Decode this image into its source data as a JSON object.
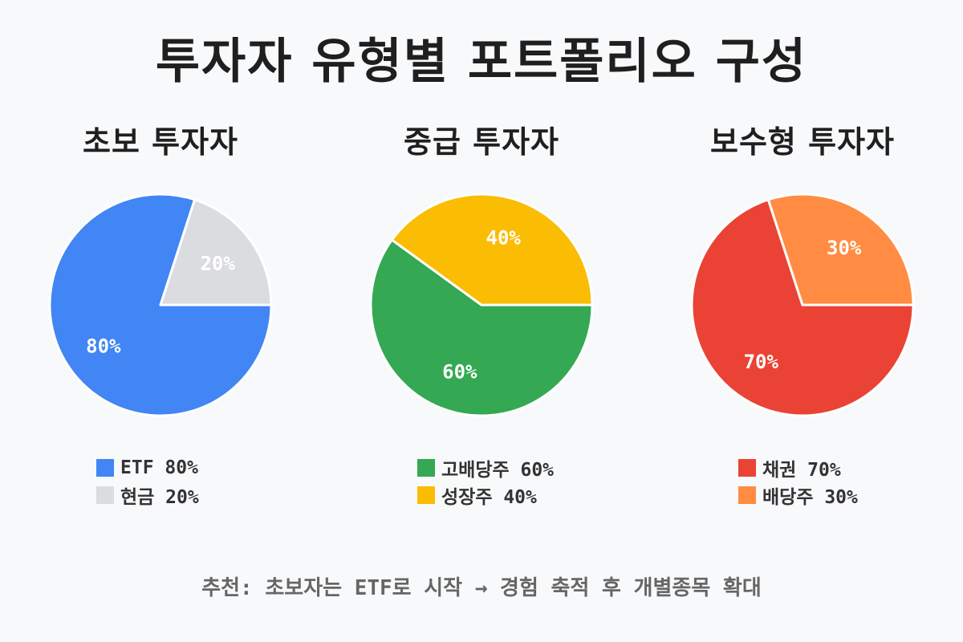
{
  "title": "투자자 유형별 포트폴리오 구성",
  "footer_note": "추천: 초보자는 ETF로 시작 → 경험 축적 후 개별종목 확대",
  "chart_data": [
    {
      "type": "pie",
      "title": "초보 투자자",
      "slices": [
        {
          "label": "ETF",
          "value": 80,
          "color": "#4285f4",
          "label_text": "80%"
        },
        {
          "label": "현금",
          "value": 20,
          "color": "#dadce0",
          "label_text": "20%"
        }
      ],
      "legend": [
        "ETF 80%",
        "현금 20%"
      ]
    },
    {
      "type": "pie",
      "title": "중급 투자자",
      "slices": [
        {
          "label": "고배당주",
          "value": 60,
          "color": "#34a853",
          "label_text": "60%"
        },
        {
          "label": "성장주",
          "value": 40,
          "color": "#fbbc04",
          "label_text": "40%"
        }
      ],
      "legend": [
        "고배당주 60%",
        "성장주 40%"
      ]
    },
    {
      "type": "pie",
      "title": "보수형 투자자",
      "slices": [
        {
          "label": "채권",
          "value": 70,
          "color": "#ea4335",
          "label_text": "70%"
        },
        {
          "label": "배당주",
          "value": 30,
          "color": "#ff8c42",
          "label_text": "30%"
        }
      ],
      "legend": [
        "채권 70%",
        "배당주 30%"
      ]
    }
  ]
}
